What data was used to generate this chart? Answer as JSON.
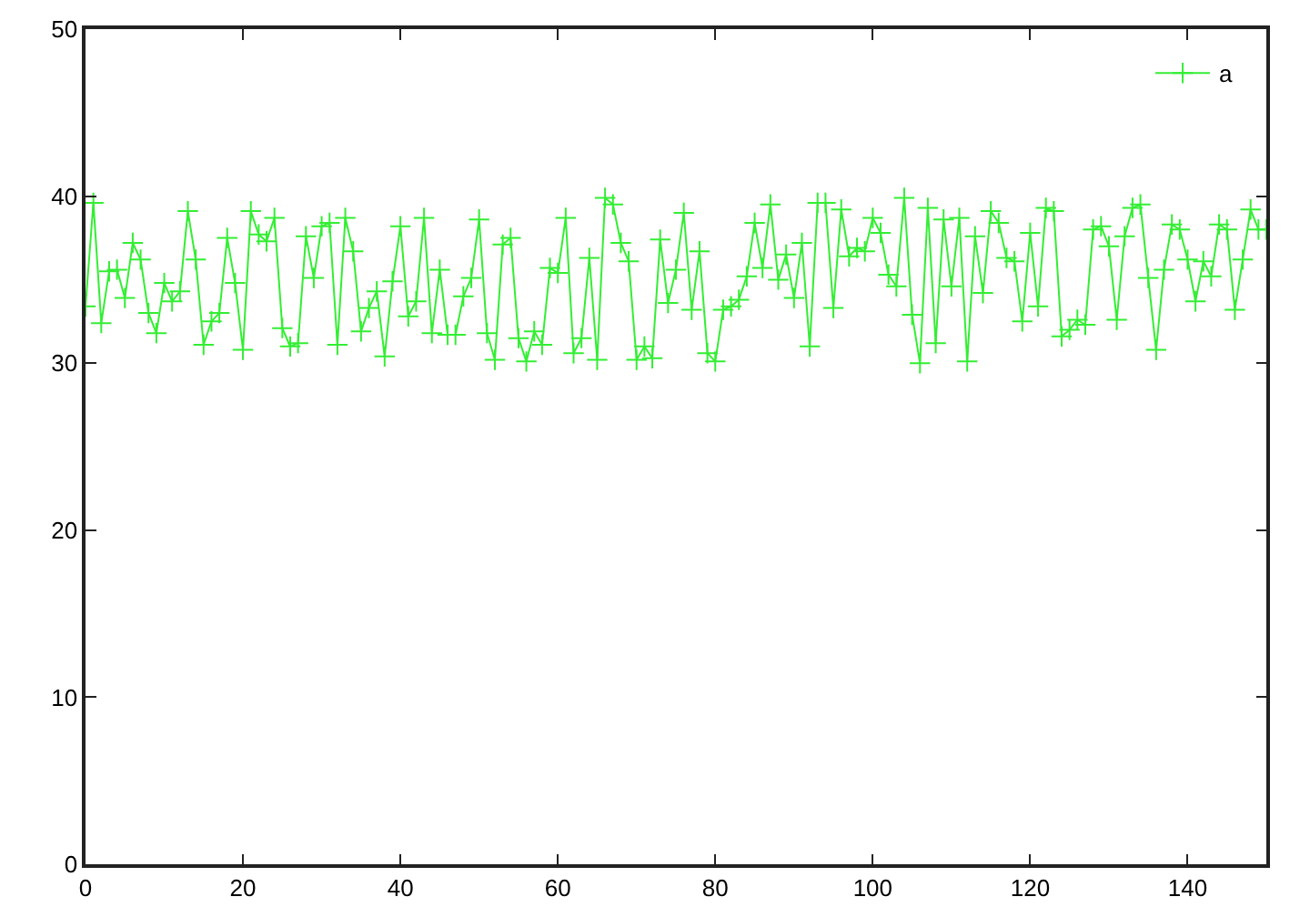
{
  "chart_data": {
    "type": "line",
    "x": [
      0,
      1,
      2,
      3,
      4,
      5,
      6,
      7,
      8,
      9,
      10,
      11,
      12,
      13,
      14,
      15,
      16,
      17,
      18,
      19,
      20,
      21,
      22,
      23,
      24,
      25,
      26,
      27,
      28,
      29,
      30,
      31,
      32,
      33,
      34,
      35,
      36,
      37,
      38,
      39,
      40,
      41,
      42,
      43,
      44,
      45,
      46,
      47,
      48,
      49,
      50,
      51,
      52,
      53,
      54,
      55,
      56,
      57,
      58,
      59,
      60,
      61,
      62,
      63,
      64,
      65,
      66,
      67,
      68,
      69,
      70,
      71,
      72,
      73,
      74,
      75,
      76,
      77,
      78,
      79,
      80,
      81,
      82,
      83,
      84,
      85,
      86,
      87,
      88,
      89,
      90,
      91,
      92,
      93,
      94,
      95,
      96,
      97,
      98,
      99,
      100,
      101,
      102,
      103,
      104,
      105,
      106,
      107,
      108,
      109,
      110,
      111,
      112,
      113,
      114,
      115,
      116,
      117,
      118,
      119,
      120,
      121,
      122,
      123,
      124,
      125,
      126,
      127,
      128,
      129,
      130,
      131,
      132,
      133,
      134,
      135,
      136,
      137,
      138,
      139,
      140,
      141,
      142,
      143,
      144,
      145,
      146,
      147,
      148,
      149,
      150
    ],
    "series": [
      {
        "name": "a",
        "color": "#33ee33",
        "values": [
          33.4,
          39.6,
          32.4,
          35.5,
          35.6,
          33.9,
          37.2,
          36.2,
          33.0,
          31.8,
          34.8,
          33.7,
          34.3,
          39.1,
          36.2,
          31.1,
          32.5,
          33.0,
          37.5,
          34.8,
          30.8,
          39.1,
          37.7,
          37.3,
          38.7,
          32.1,
          31.0,
          31.2,
          37.6,
          35.1,
          38.2,
          38.4,
          31.1,
          38.7,
          36.7,
          31.9,
          33.3,
          34.3,
          30.4,
          34.9,
          38.2,
          32.8,
          33.7,
          38.7,
          31.8,
          35.6,
          31.7,
          31.7,
          34.0,
          35.1,
          38.6,
          31.8,
          30.2,
          37.1,
          37.5,
          31.5,
          30.1,
          31.9,
          31.1,
          35.7,
          35.4,
          38.7,
          30.6,
          31.5,
          36.3,
          30.2,
          39.9,
          39.5,
          37.2,
          36.1,
          30.2,
          31.0,
          30.3,
          37.4,
          33.6,
          35.6,
          39.0,
          33.2,
          36.7,
          30.6,
          30.1,
          33.2,
          33.4,
          33.8,
          35.2,
          38.4,
          35.7,
          39.5,
          35.0,
          36.5,
          33.9,
          37.2,
          31.0,
          39.6,
          39.6,
          33.3,
          39.2,
          36.4,
          36.9,
          36.7,
          38.7,
          37.8,
          35.3,
          34.6,
          39.9,
          32.9,
          30.0,
          39.3,
          31.2,
          38.6,
          34.6,
          38.7,
          30.1,
          37.6,
          34.2,
          39.1,
          38.4,
          36.3,
          36.1,
          32.5,
          37.8,
          33.4,
          39.3,
          39.1,
          31.6,
          32.0,
          32.6,
          32.3,
          38.0,
          38.2,
          37.0,
          32.6,
          37.6,
          39.3,
          39.5,
          35.1,
          30.8,
          35.6,
          38.3,
          38.0,
          36.2,
          33.7,
          36.1,
          35.2,
          38.3,
          38.0,
          33.2,
          36.2,
          39.2,
          38.0,
          38.0
        ]
      }
    ],
    "xlim": [
      0,
      150
    ],
    "xticks": [
      0,
      20,
      40,
      60,
      80,
      100,
      120,
      140
    ],
    "ylim": [
      0,
      50
    ],
    "yticks": [
      0,
      10,
      20,
      30,
      40,
      50
    ],
    "grid": false,
    "legend": "top right",
    "marker": "cross",
    "line_style": "solid"
  }
}
